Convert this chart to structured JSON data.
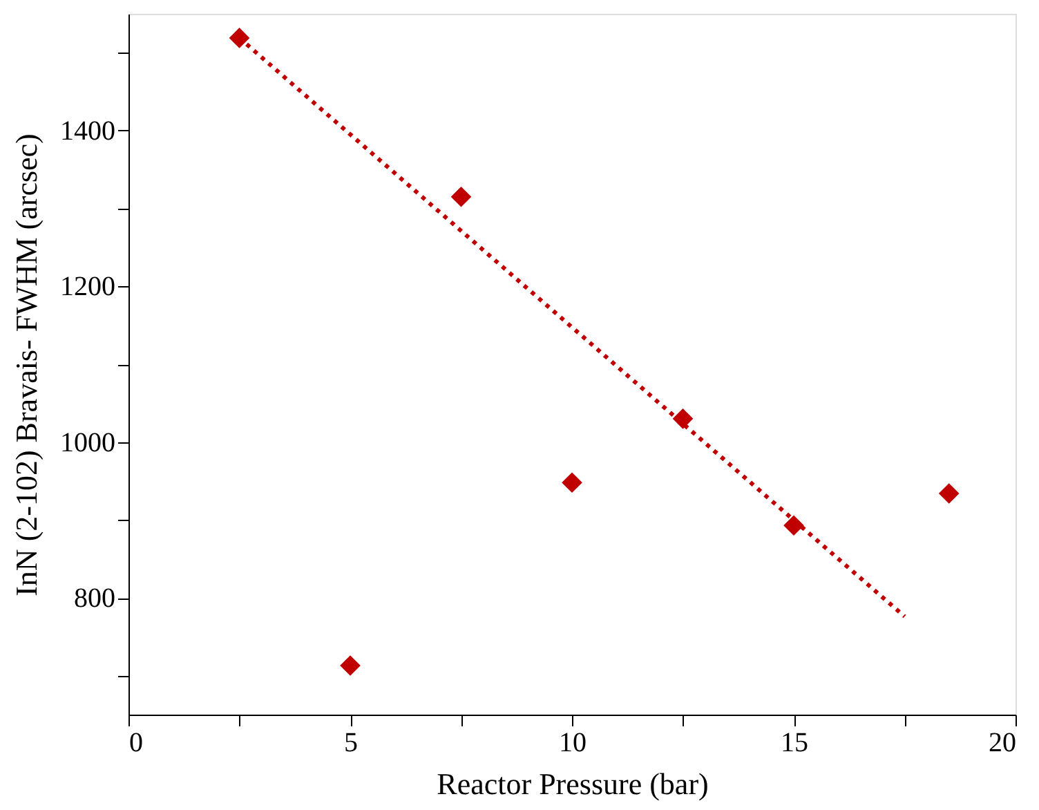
{
  "chart_data": {
    "type": "scatter",
    "xlabel": "Reactor Pressure (bar)",
    "ylabel": "InN (2-102) Bravais- FWHM (arcsec)",
    "xlim": [
      0,
      20
    ],
    "ylim": [
      650,
      1550
    ],
    "xticks": [
      0,
      {
        "value": 2.5,
        "label": null
      },
      5,
      {
        "value": 7.5,
        "label": null
      },
      10,
      {
        "value": 12.5,
        "label": null
      },
      15,
      {
        "value": 17.5,
        "label": null
      },
      20
    ],
    "yticks": [
      {
        "value": 700,
        "label": null
      },
      800,
      {
        "value": 900,
        "label": null
      },
      1000,
      {
        "value": 1100,
        "label": null
      },
      1200,
      {
        "value": 1300,
        "label": null
      },
      1400,
      {
        "value": 1500,
        "label": null
      }
    ],
    "grid": false,
    "series": [
      {
        "marker": "diamond",
        "color": "#c00000",
        "x": [
          2.5,
          5,
          7.5,
          10,
          12.5,
          15,
          18.5
        ],
        "values": [
          1519,
          713,
          1315,
          948,
          1030,
          893,
          934
        ]
      },
      {
        "type": "line",
        "line_style": "dotted",
        "marker": "none",
        "color": "#c00000",
        "x": [
          2.5,
          17.5
        ],
        "values": [
          1519,
          776
        ]
      }
    ]
  }
}
